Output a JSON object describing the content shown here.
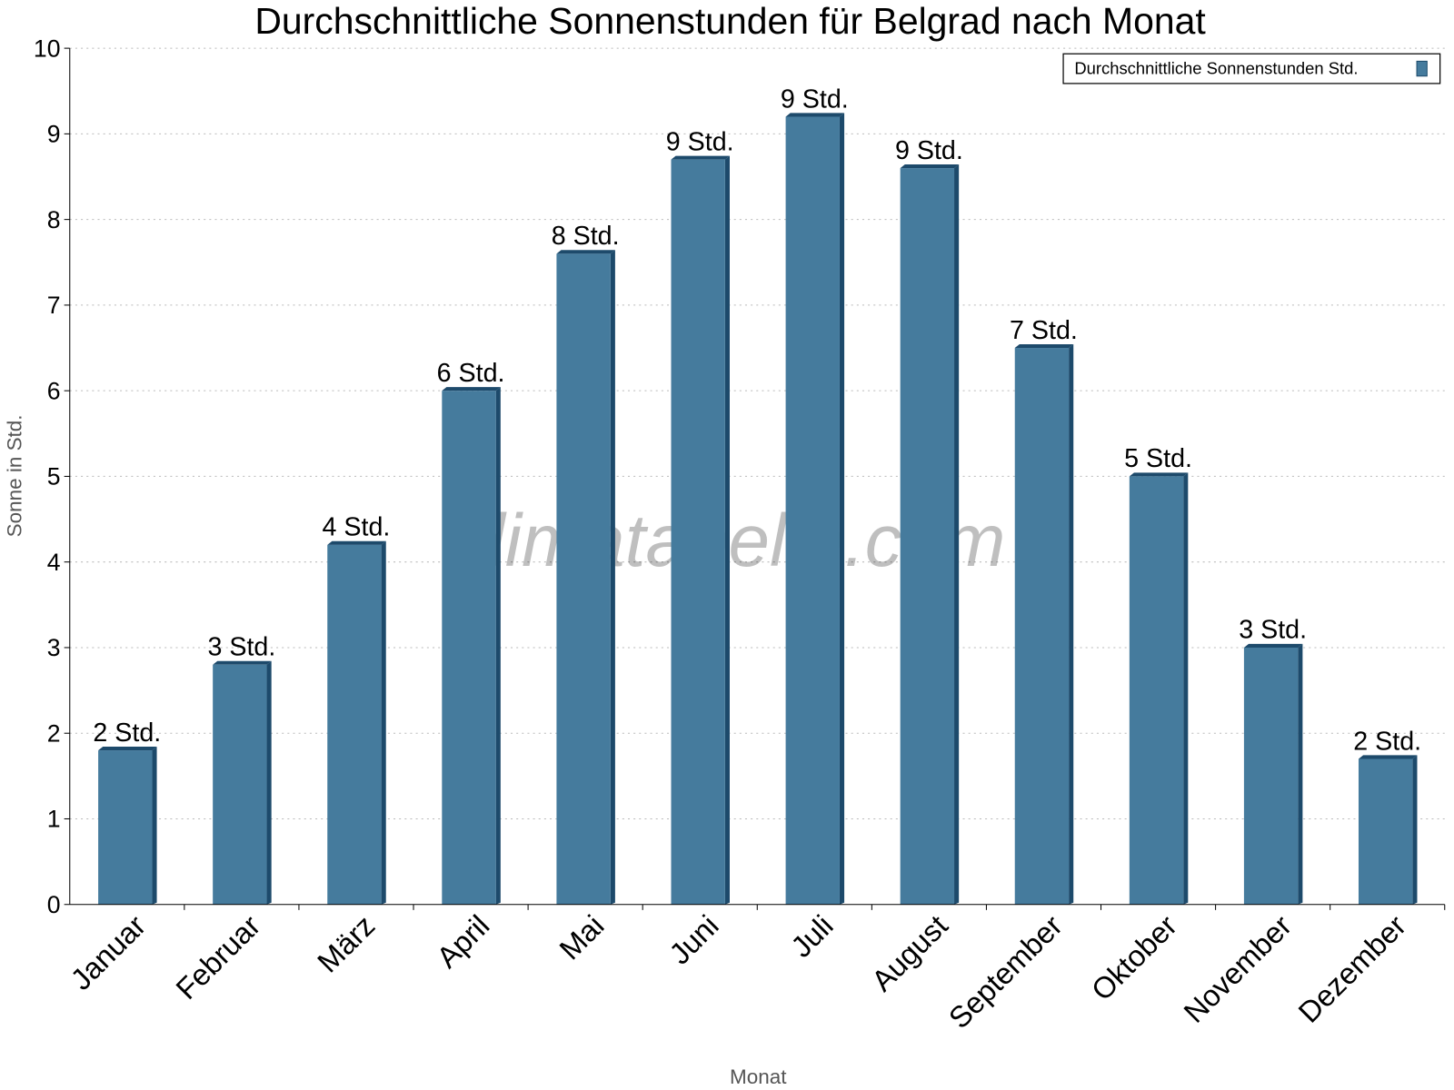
{
  "chart_data": {
    "type": "bar",
    "title": "Durchschnittliche Sonnenstunden für Belgrad nach Monat",
    "xlabel": "Monat",
    "ylabel": "Sonne in Std.",
    "ylim": [
      0,
      10
    ],
    "yticks": [
      "0",
      "1",
      "2",
      "3",
      "4",
      "5",
      "6",
      "7",
      "8",
      "9",
      "10"
    ],
    "grid": true,
    "legend_position": "top-right",
    "watermark": "klimatabelle.com",
    "categories": [
      "Januar",
      "Februar",
      "März",
      "April",
      "Mai",
      "Juni",
      "Juli",
      "August",
      "September",
      "Oktober",
      "November",
      "Dezember"
    ],
    "series": [
      {
        "name": "Durchschnittliche Sonnenstunden Std.",
        "color": "#457b9d",
        "values": [
          1.8,
          2.8,
          4.2,
          6.0,
          7.6,
          8.7,
          9.2,
          8.6,
          6.5,
          5.0,
          3.0,
          1.7
        ],
        "labels": [
          "2 Std.",
          "3 Std.",
          "4 Std.",
          "6 Std.",
          "8 Std.",
          "9 Std.",
          "9 Std.",
          "9 Std.",
          "7 Std.",
          "5 Std.",
          "3 Std.",
          "2 Std."
        ]
      }
    ]
  }
}
